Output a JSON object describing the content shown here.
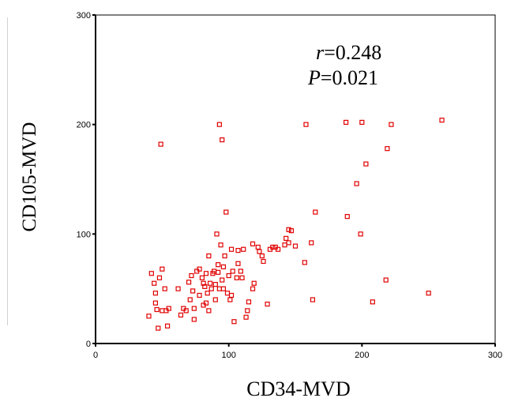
{
  "chart_data": {
    "type": "scatter",
    "xlabel": "CD34-MVD",
    "ylabel": "CD105-MVD",
    "xlim": [
      0,
      300
    ],
    "ylim": [
      0,
      300
    ],
    "xticks": [
      "0",
      "100",
      "200",
      "300"
    ],
    "yticks": [
      "0",
      "100",
      "200",
      "300"
    ],
    "annotations": {
      "r_symbol": "r",
      "r_value": "=0.248",
      "p_symbol": "P",
      "p_value": "=0.021"
    },
    "marker_color": "#e00000",
    "grid": false,
    "points": [
      [
        40,
        25
      ],
      [
        42,
        64
      ],
      [
        44,
        55
      ],
      [
        45,
        46
      ],
      [
        45,
        37
      ],
      [
        46,
        31
      ],
      [
        47,
        14
      ],
      [
        48,
        60
      ],
      [
        49,
        182
      ],
      [
        50,
        68
      ],
      [
        50,
        30
      ],
      [
        52,
        50
      ],
      [
        53,
        30
      ],
      [
        54,
        16
      ],
      [
        55,
        32
      ],
      [
        62,
        50
      ],
      [
        64,
        26
      ],
      [
        66,
        32
      ],
      [
        68,
        30
      ],
      [
        70,
        56
      ],
      [
        71,
        40
      ],
      [
        72,
        62
      ],
      [
        73,
        48
      ],
      [
        74,
        32
      ],
      [
        74,
        22
      ],
      [
        76,
        66
      ],
      [
        78,
        68
      ],
      [
        78,
        44
      ],
      [
        80,
        60
      ],
      [
        81,
        55
      ],
      [
        81,
        35
      ],
      [
        82,
        52
      ],
      [
        83,
        64
      ],
      [
        83,
        37
      ],
      [
        84,
        46
      ],
      [
        85,
        80
      ],
      [
        85,
        30
      ],
      [
        86,
        55
      ],
      [
        87,
        50
      ],
      [
        88,
        64
      ],
      [
        89,
        66
      ],
      [
        90,
        54
      ],
      [
        90,
        40
      ],
      [
        91,
        100
      ],
      [
        92,
        65
      ],
      [
        92,
        72
      ],
      [
        93,
        50
      ],
      [
        93,
        200
      ],
      [
        94,
        90
      ],
      [
        95,
        186
      ],
      [
        95,
        58
      ],
      [
        96,
        70
      ],
      [
        96,
        50
      ],
      [
        97,
        80
      ],
      [
        98,
        120
      ],
      [
        99,
        46
      ],
      [
        100,
        62
      ],
      [
        101,
        40
      ],
      [
        102,
        86
      ],
      [
        102,
        44
      ],
      [
        103,
        66
      ],
      [
        104,
        20
      ],
      [
        106,
        60
      ],
      [
        107,
        85
      ],
      [
        107,
        73
      ],
      [
        109,
        66
      ],
      [
        110,
        60
      ],
      [
        111,
        86
      ],
      [
        113,
        24
      ],
      [
        114,
        30
      ],
      [
        115,
        38
      ],
      [
        118,
        91
      ],
      [
        118,
        50
      ],
      [
        119,
        55
      ],
      [
        122,
        88
      ],
      [
        123,
        84
      ],
      [
        125,
        80
      ],
      [
        126,
        75
      ],
      [
        129,
        36
      ],
      [
        131,
        86
      ],
      [
        133,
        88
      ],
      [
        135,
        88
      ],
      [
        137,
        86
      ],
      [
        142,
        90
      ],
      [
        143,
        96
      ],
      [
        145,
        92
      ],
      [
        145,
        104
      ],
      [
        147,
        103
      ],
      [
        150,
        89
      ],
      [
        157,
        74
      ],
      [
        158,
        200
      ],
      [
        162,
        92
      ],
      [
        163,
        40
      ],
      [
        165,
        120
      ],
      [
        188,
        202
      ],
      [
        189,
        116
      ],
      [
        196,
        146
      ],
      [
        199,
        100
      ],
      [
        200,
        202
      ],
      [
        203,
        164
      ],
      [
        208,
        38
      ],
      [
        218,
        58
      ],
      [
        219,
        178
      ],
      [
        222,
        200
      ],
      [
        250,
        46
      ],
      [
        260,
        204
      ]
    ]
  }
}
